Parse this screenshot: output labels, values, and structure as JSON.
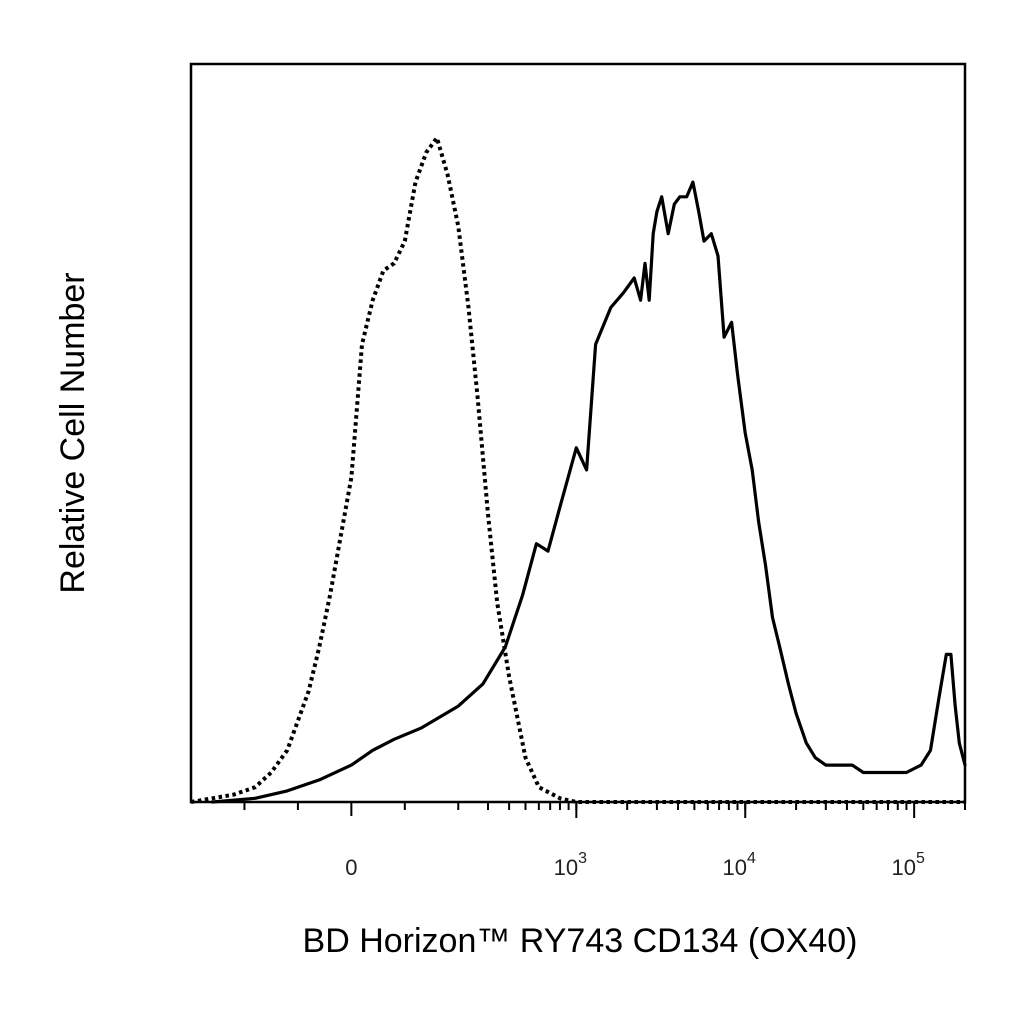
{
  "chart_data": {
    "type": "line",
    "title": "",
    "xlabel": "BD Horizon™ RY743  CD134 (OX40)",
    "ylabel": "Relative Cell Number",
    "x_scale": "biexponential",
    "xlim": [
      -300,
      200000
    ],
    "ylim": [
      0,
      100
    ],
    "grid": false,
    "legend": "none",
    "x_ticks": [
      {
        "value": 0,
        "base": "0",
        "exp": ""
      },
      {
        "value": 1000,
        "base": "10",
        "exp": "3"
      },
      {
        "value": 10000,
        "base": "10",
        "exp": "4"
      },
      {
        "value": 100000,
        "base": "10",
        "exp": "5"
      }
    ],
    "colors": {
      "stained": "#000000",
      "control": "#000000",
      "frame": "#000000"
    },
    "series": [
      {
        "style": "solid",
        "x": [
          -260,
          -180,
          -120,
          -60,
          0,
          40,
          80,
          130,
          200,
          280,
          380,
          480,
          580,
          680,
          800,
          1000,
          1150,
          1300,
          1600,
          1900,
          2200,
          2400,
          2550,
          2700,
          2850,
          3000,
          3200,
          3500,
          3800,
          4100,
          4500,
          4900,
          5300,
          5700,
          6300,
          6900,
          7500,
          8300,
          9000,
          10000,
          11000,
          12000,
          13200,
          14500,
          16000,
          18000,
          20000,
          23000,
          26000,
          30000,
          36000,
          43000,
          50000,
          60000,
          72000,
          90000,
          110000,
          125000,
          140000,
          155000,
          165000,
          175000,
          185000,
          200000
        ],
        "y": [
          0,
          0.5,
          1.5,
          3,
          5,
          7,
          8.5,
          10,
          13,
          16,
          21,
          28,
          35,
          34,
          40,
          48,
          45,
          62,
          67,
          69,
          71,
          68,
          73,
          68,
          77,
          80,
          82,
          77,
          81,
          82,
          82,
          84,
          80,
          76,
          77,
          74,
          63,
          65,
          58,
          50,
          45,
          38,
          32,
          25,
          21,
          16,
          12,
          8,
          6,
          5,
          5,
          5,
          4,
          4,
          4,
          4,
          5,
          7,
          14,
          20,
          20,
          13,
          8,
          5
        ]
      },
      {
        "style": "dotted",
        "x": [
          -300,
          -260,
          -220,
          -180,
          -150,
          -120,
          -100,
          -80,
          -60,
          -40,
          -20,
          0,
          20,
          40,
          60,
          80,
          100,
          120,
          140,
          160,
          180,
          200,
          230,
          260,
          300,
          340,
          400,
          500,
          600,
          800,
          1000,
          5000,
          200000
        ],
        "y": [
          0,
          0.5,
          1,
          2,
          4,
          7,
          11,
          15,
          21,
          28,
          36,
          44,
          62,
          68,
          72,
          73,
          76,
          84,
          88,
          90,
          85,
          78,
          67,
          55,
          39,
          27,
          17,
          6,
          2,
          0.5,
          0,
          0,
          0
        ]
      }
    ]
  }
}
